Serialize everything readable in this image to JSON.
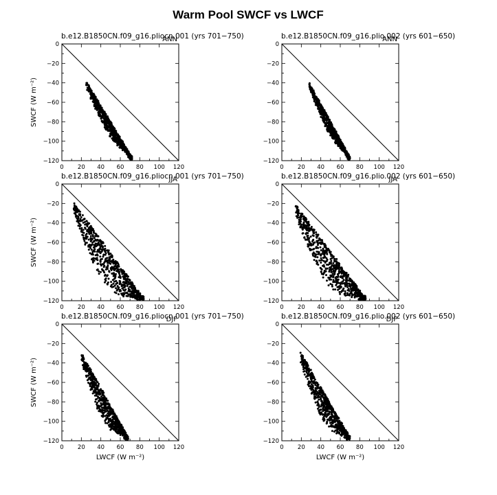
{
  "figure": {
    "title": "Warm Pool SWCF vs LWCF"
  },
  "chart_data": [
    {
      "type": "scatter",
      "title": "b.e12.B1850CN.f09_g16.pliocn.001 (yrs 701−750)",
      "season": "ANN",
      "xlabel": "",
      "ylabel": "SWCF (W m⁻²)",
      "xlim": [
        0,
        120
      ],
      "ylim": [
        -120,
        0
      ],
      "xticks": [
        0,
        20,
        40,
        60,
        80,
        100,
        120
      ],
      "yticks": [
        -120,
        -100,
        -80,
        -60,
        -40,
        -20,
        0
      ],
      "reference_line": "x + y = 0",
      "cloud": {
        "x_range": [
          25,
          72
        ],
        "y_top_left": -40,
        "y_bottom_right": -118,
        "ridge_offset": 20,
        "spread": 12
      }
    },
    {
      "type": "scatter",
      "title": "b.e12.B1850CN.f09_g16.plio.002 (yrs 601−650)",
      "season": "ANN",
      "xlabel": "",
      "ylabel": "",
      "xlim": [
        0,
        120
      ],
      "ylim": [
        -120,
        0
      ],
      "xticks": [
        0,
        20,
        40,
        60,
        80,
        100,
        120
      ],
      "yticks": [
        -120,
        -100,
        -80,
        -60,
        -40,
        -20,
        0
      ],
      "reference_line": "x + y = 0",
      "cloud": {
        "x_range": [
          28,
          70
        ],
        "y_top_left": -41,
        "y_bottom_right": -118,
        "ridge_offset": 19,
        "spread": 11
      }
    },
    {
      "type": "scatter",
      "title": "b.e12.B1850CN.f09_g16.pliocn.001 (yrs 701−750)",
      "season": "JJA",
      "xlabel": "",
      "ylabel": "SWCF (W m⁻²)",
      "xlim": [
        0,
        120
      ],
      "ylim": [
        -120,
        0
      ],
      "xticks": [
        0,
        20,
        40,
        60,
        80,
        100,
        120
      ],
      "yticks": [
        -120,
        -100,
        -80,
        -60,
        -40,
        -20,
        0
      ],
      "reference_line": "x + y = 0",
      "cloud": {
        "x_range": [
          12,
          84
        ],
        "y_top_left": -20,
        "y_bottom_right": -119,
        "ridge_offset": 22,
        "spread": 30
      }
    },
    {
      "type": "scatter",
      "title": "b.e12.B1850CN.f09_g16.plio.002 (yrs 601−650)",
      "season": "JJA",
      "xlabel": "",
      "ylabel": "",
      "xlim": [
        0,
        120
      ],
      "ylim": [
        -120,
        0
      ],
      "xticks": [
        0,
        20,
        40,
        60,
        80,
        100,
        120
      ],
      "yticks": [
        -120,
        -100,
        -80,
        -60,
        -40,
        -20,
        0
      ],
      "reference_line": "x + y = 0",
      "cloud": {
        "x_range": [
          14,
          86
        ],
        "y_top_left": -22,
        "y_bottom_right": -119,
        "ridge_offset": 21,
        "spread": 29
      }
    },
    {
      "type": "scatter",
      "title": "b.e12.B1850CN.f09_g16.pliocn.001 (yrs 701−750)",
      "season": "DJF",
      "xlabel": "LWCF (W m⁻²)",
      "ylabel": "SWCF (W m⁻²)",
      "xlim": [
        0,
        120
      ],
      "ylim": [
        -120,
        0
      ],
      "xticks": [
        0,
        20,
        40,
        60,
        80,
        100,
        120
      ],
      "yticks": [
        -120,
        -100,
        -80,
        -60,
        -40,
        -20,
        0
      ],
      "reference_line": "x + y = 0",
      "cloud": {
        "x_range": [
          20,
          68
        ],
        "y_top_left": -31,
        "y_bottom_right": -118,
        "ridge_offset": 12,
        "spread": 22
      }
    },
    {
      "type": "scatter",
      "title": "b.e12.B1850CN.f09_g16.plio.002 (yrs 601−650)",
      "season": "DJF",
      "xlabel": "LWCF (W m⁻²)",
      "ylabel": "",
      "xlim": [
        0,
        120
      ],
      "ylim": [
        -120,
        0
      ],
      "xticks": [
        0,
        20,
        40,
        60,
        80,
        100,
        120
      ],
      "yticks": [
        -120,
        -100,
        -80,
        -60,
        -40,
        -20,
        0
      ],
      "reference_line": "x + y = 0",
      "cloud": {
        "x_range": [
          19,
          70
        ],
        "y_top_left": -30,
        "y_bottom_right": -118,
        "ridge_offset": 12,
        "spread": 23
      }
    }
  ]
}
